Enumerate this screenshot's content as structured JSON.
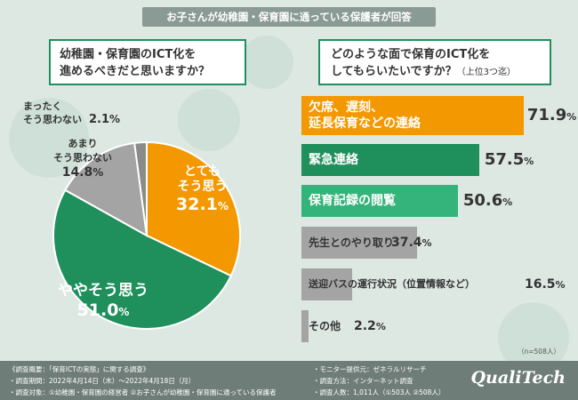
{
  "banner": "お子さんが幼稚園・保育園に通っている保護者が回答",
  "q1": {
    "line1": "幼稚園・保育園のICT化を",
    "line2": "進めるべきだと思いますか？"
  },
  "q2": {
    "line1": "どのような面で保育のICT化を",
    "line2": "してもらいたいですか？",
    "note": "（上位3つ迄）"
  },
  "colors": {
    "orange": "#f39800",
    "green": "#1f8f5c",
    "teal": "#34b37a",
    "gray": "#a4a4a4",
    "darkgray": "#8a8a8a"
  },
  "chart_data": [
    {
      "type": "pie",
      "title": "幼稚園・保育園のICT化を進めるべきだと思いますか？",
      "slices": [
        {
          "label": "とても そう思う",
          "line1": "とても",
          "line2": "そう思う",
          "value": 32.1,
          "num": "32.1",
          "pct": "%",
          "color": "#f39800"
        },
        {
          "label": "ややそう思う",
          "line1": "ややそう思う",
          "line2": "",
          "value": 51.0,
          "num": "51.0",
          "pct": "%",
          "color": "#1f8f5c"
        },
        {
          "label": "あまり そう思わない",
          "line1": "あまり",
          "line2": "そう思わない",
          "value": 14.8,
          "num": "14.8",
          "pct": "%",
          "color": "#a4a4a4"
        },
        {
          "label": "まったく そう思わない",
          "line1": "まったく",
          "line2": "そう思わない",
          "value": 2.1,
          "num": "2.1",
          "pct": "%",
          "color": "#8a8a8a"
        }
      ]
    },
    {
      "type": "bar",
      "title": "どのような面で保育のICT化をしてもらいたいですか？（上位3つ迄）",
      "categories": [
        "欠席、遅刻、延長保育などの連絡",
        "緊急連絡",
        "保育記録の閲覧",
        "先生とのやり取り",
        "送迎バスの運行状況（位置情報など）",
        "その他"
      ],
      "values": [
        71.9,
        57.5,
        50.6,
        37.4,
        16.5,
        2.2
      ],
      "bars": [
        {
          "line1": "欠席、遅刻、",
          "line2": "延長保育などの連絡",
          "num": "71.9",
          "pct": "%",
          "color": "#f39800"
        },
        {
          "line1": "緊急連絡",
          "line2": "",
          "num": "57.5",
          "pct": "%",
          "color": "#1f8f5c"
        },
        {
          "line1": "保育記録の閲覧",
          "line2": "",
          "num": "50.6",
          "pct": "%",
          "color": "#34b37a"
        },
        {
          "line1": "先生とのやり取り",
          "line2": "",
          "num": "37.4",
          "pct": "%",
          "color": "#a4a4a4"
        },
        {
          "line1": "送迎バスの運行状況（位置情報など）",
          "line2": "",
          "num": "16.5",
          "pct": "%",
          "color": "#a4a4a4"
        },
        {
          "line1": "その他",
          "line2": "",
          "num": "2.2",
          "pct": "%",
          "color": "#a4a4a4"
        }
      ],
      "n_note": "（n=508人）"
    }
  ],
  "footer": {
    "l1": "《調査概要：「保育ICTの実態」に関する調査》",
    "l2": "・調査期間：2022年4月14日（木）～2022年4月18日（月）",
    "l3": "・調査対象：①幼稚園・保育園の経営者 ②お子さんが幼稚園・保育園に通っている保護者",
    "r1": "・モニター提供元：ゼネラルリサーチ",
    "r2": "・調査方法：インターネット調査",
    "r3": "・調査人数：1,011人（①503人 ②508人）",
    "logo": "QualiTech"
  }
}
